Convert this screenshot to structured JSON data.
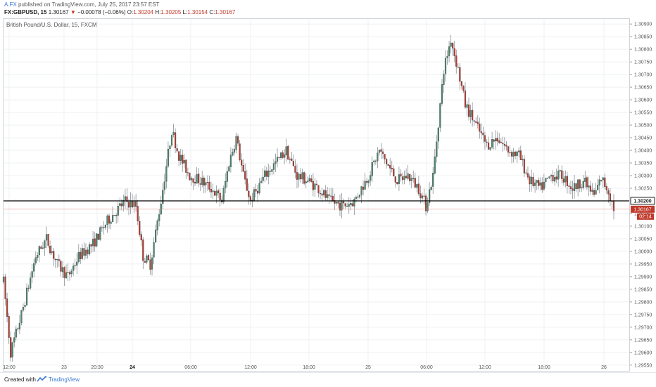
{
  "header": {
    "author": "A.FX",
    "published": "published on TradingView.com, July 25, 2017 23:57 EST",
    "symbol": "FX:GBPUSD, 15",
    "last": "1.30167",
    "arrow": "▼",
    "change": "−0.00078 (−0.06%)",
    "o_label": "O:",
    "o_value": "1.30204",
    "h_label": "H:",
    "h_value": "1.30205",
    "l_label": "L:",
    "l_value": "1.30154",
    "c_label": "C:",
    "c_value": "1.30167"
  },
  "chart_title": "British Pound/U.S. Dollar, 15, FXCM",
  "footer": {
    "created": "Created with",
    "brand": "TradingView"
  },
  "colors": {
    "up": "#4a8a6b",
    "down": "#c0392b",
    "wick": "#8a8f96",
    "hline": "#000000",
    "lastline": "#e08080"
  },
  "chart_data": {
    "type": "candlestick",
    "ylim": [
      1.2953,
      1.3092
    ],
    "y_ticks": [
      "1.30900",
      "1.30850",
      "1.30800",
      "1.30750",
      "1.30700",
      "1.30650",
      "1.30600",
      "1.30550",
      "1.30500",
      "1.30450",
      "1.30400",
      "1.30350",
      "1.30300",
      "1.30250",
      "1.30200",
      "1.30150",
      "1.30100",
      "1.30050",
      "1.30000",
      "1.29950",
      "1.29900",
      "1.29850",
      "1.29800",
      "1.29750",
      "1.29700",
      "1.29650",
      "1.29600",
      "1.29550"
    ],
    "x_ticks": [
      {
        "label": "12:00",
        "bold": false
      },
      {
        "label": "23",
        "bold": false
      },
      {
        "label": "20:30",
        "bold": false
      },
      {
        "label": "24",
        "bold": true
      },
      {
        "label": "06:00",
        "bold": false
      },
      {
        "label": "12:00",
        "bold": false
      },
      {
        "label": "18:00",
        "bold": false
      },
      {
        "label": "25",
        "bold": false
      },
      {
        "label": "06:00",
        "bold": false
      },
      {
        "label": "12:00",
        "bold": false
      },
      {
        "label": "18:00",
        "bold": false
      },
      {
        "label": "26",
        "bold": false
      }
    ],
    "horizontal_line": {
      "value": 1.302,
      "label": "1.30200"
    },
    "last_price": {
      "value": 1.30167,
      "label": "1.30167",
      "countdown": "02:14"
    },
    "anchors": [
      [
        0,
        1.2988
      ],
      [
        4,
        1.296
      ],
      [
        10,
        1.2975
      ],
      [
        18,
        1.2998
      ],
      [
        24,
        1.3005
      ],
      [
        30,
        1.2995
      ],
      [
        36,
        1.299
      ],
      [
        42,
        1.2998
      ],
      [
        50,
        1.3003
      ],
      [
        58,
        1.3012
      ],
      [
        68,
        1.302
      ],
      [
        74,
        1.3018
      ],
      [
        78,
        1.2998
      ],
      [
        82,
        1.2995
      ],
      [
        88,
        1.302
      ],
      [
        94,
        1.3048
      ],
      [
        98,
        1.3038
      ],
      [
        104,
        1.303
      ],
      [
        110,
        1.3028
      ],
      [
        116,
        1.3025
      ],
      [
        122,
        1.302
      ],
      [
        126,
        1.3035
      ],
      [
        130,
        1.3045
      ],
      [
        134,
        1.303
      ],
      [
        138,
        1.302
      ],
      [
        146,
        1.303
      ],
      [
        152,
        1.3035
      ],
      [
        158,
        1.304
      ],
      [
        164,
        1.303
      ],
      [
        170,
        1.3028
      ],
      [
        176,
        1.3025
      ],
      [
        182,
        1.302
      ],
      [
        190,
        1.3018
      ],
      [
        196,
        1.302
      ],
      [
        204,
        1.303
      ],
      [
        210,
        1.304
      ],
      [
        214,
        1.3035
      ],
      [
        220,
        1.3028
      ],
      [
        226,
        1.303
      ],
      [
        232,
        1.3025
      ],
      [
        236,
        1.3018
      ],
      [
        240,
        1.303
      ],
      [
        246,
        1.3072
      ],
      [
        250,
        1.3084
      ],
      [
        254,
        1.3072
      ],
      [
        258,
        1.3058
      ],
      [
        264,
        1.305
      ],
      [
        270,
        1.3042
      ],
      [
        276,
        1.3045
      ],
      [
        282,
        1.304
      ],
      [
        288,
        1.3038
      ],
      [
        294,
        1.3028
      ],
      [
        300,
        1.3025
      ],
      [
        306,
        1.303
      ],
      [
        312,
        1.303
      ],
      [
        318,
        1.3025
      ],
      [
        324,
        1.3028
      ],
      [
        330,
        1.3022
      ],
      [
        334,
        1.3029
      ],
      [
        338,
        1.3024
      ],
      [
        341,
        1.3017
      ]
    ],
    "n_candles": 342
  }
}
